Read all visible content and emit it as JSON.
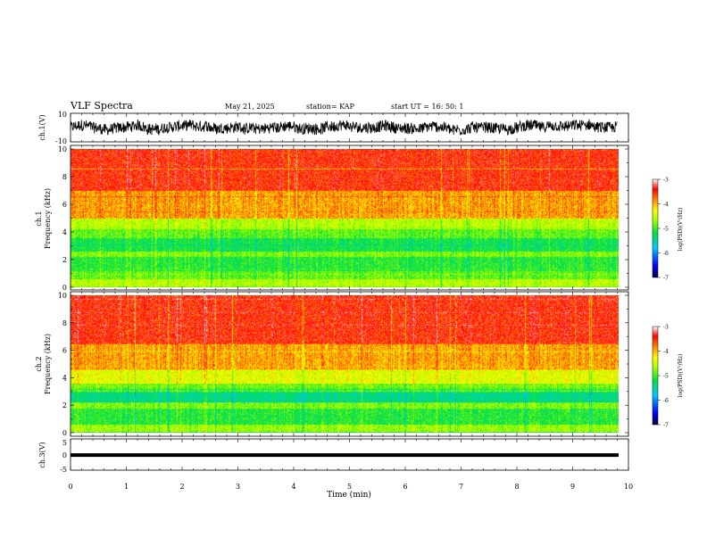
{
  "header": {
    "title": "VLF Spectra",
    "date": "May 21, 2025",
    "station": "station= KAP",
    "start": "start  UT =  16: 50: 1"
  },
  "chart_data": [
    {
      "type": "line",
      "name": "ch1-waveform",
      "ylabel": "ch.1(V)",
      "ylim": [
        -10,
        10
      ],
      "yticklabels": [
        "10",
        "-10"
      ],
      "xlim": [
        0,
        10
      ],
      "description_values": {
        "typical_min": -7,
        "typical_max": 7
      }
    },
    {
      "type": "heatmap",
      "name": "ch1-spectrogram",
      "ylabel": "ch.1\nFrequency (kHz)",
      "ylim": [
        0,
        10
      ],
      "yticklabels": [
        "10",
        "8",
        "6",
        "4",
        "2",
        "0"
      ],
      "xlim": [
        0,
        9.8
      ],
      "bands": [
        {
          "from": 0.0,
          "to": 0.6,
          "log_psd": -4.6
        },
        {
          "from": 0.6,
          "to": 1.2,
          "log_psd": -4.9
        },
        {
          "from": 1.2,
          "to": 2.2,
          "log_psd": -5.1
        },
        {
          "from": 2.2,
          "to": 2.6,
          "log_psd": -4.8
        },
        {
          "from": 2.6,
          "to": 3.6,
          "log_psd": -5.2
        },
        {
          "from": 3.6,
          "to": 4.2,
          "log_psd": -4.9
        },
        {
          "from": 4.2,
          "to": 5.0,
          "log_psd": -4.6
        },
        {
          "from": 5.0,
          "to": 7.0,
          "log_psd": -4.0
        },
        {
          "from": 7.0,
          "to": 10.0,
          "log_psd": -3.6
        }
      ],
      "colorbar": {
        "label": "log(PSD)(V²/Hz)",
        "range": [
          -7,
          -3
        ],
        "ticks": [
          "-3",
          "-4",
          "-5",
          "-6",
          "-7"
        ]
      }
    },
    {
      "type": "heatmap",
      "name": "ch2-spectrogram",
      "ylabel": "ch.2\nFrequency (kHz)",
      "ylim": [
        0,
        10
      ],
      "yticklabels": [
        "10",
        "8",
        "6",
        "4",
        "2",
        "0"
      ],
      "xlim": [
        0,
        9.8
      ],
      "bands": [
        {
          "from": 0.0,
          "to": 0.6,
          "log_psd": -4.7
        },
        {
          "from": 0.6,
          "to": 1.8,
          "log_psd": -5.1
        },
        {
          "from": 1.8,
          "to": 2.2,
          "log_psd": -4.8
        },
        {
          "from": 2.2,
          "to": 3.0,
          "log_psd": -5.4
        },
        {
          "from": 3.0,
          "to": 3.6,
          "log_psd": -4.9
        },
        {
          "from": 3.6,
          "to": 4.6,
          "log_psd": -4.4
        },
        {
          "from": 4.6,
          "to": 6.5,
          "log_psd": -4.0
        },
        {
          "from": 6.5,
          "to": 10.0,
          "log_psd": -3.6
        }
      ],
      "colorbar": {
        "label": "log(PSD)(V²/Hz)",
        "range": [
          -7,
          -3
        ],
        "ticks": [
          "-3",
          "-4",
          "-5",
          "-6",
          "-7"
        ]
      }
    },
    {
      "type": "line",
      "name": "ch3-signal",
      "ylabel": "ch.3(V)",
      "ylim": [
        -5,
        5
      ],
      "yticklabels": [
        "5",
        "0",
        "-5"
      ],
      "xlim": [
        0,
        10
      ],
      "level_min": -0.4,
      "level_max": 0.4,
      "xlabel": "Time (min)",
      "xticklabels": [
        "0",
        "1",
        "2",
        "3",
        "4",
        "5",
        "6",
        "7",
        "8",
        "9",
        "10"
      ]
    }
  ]
}
